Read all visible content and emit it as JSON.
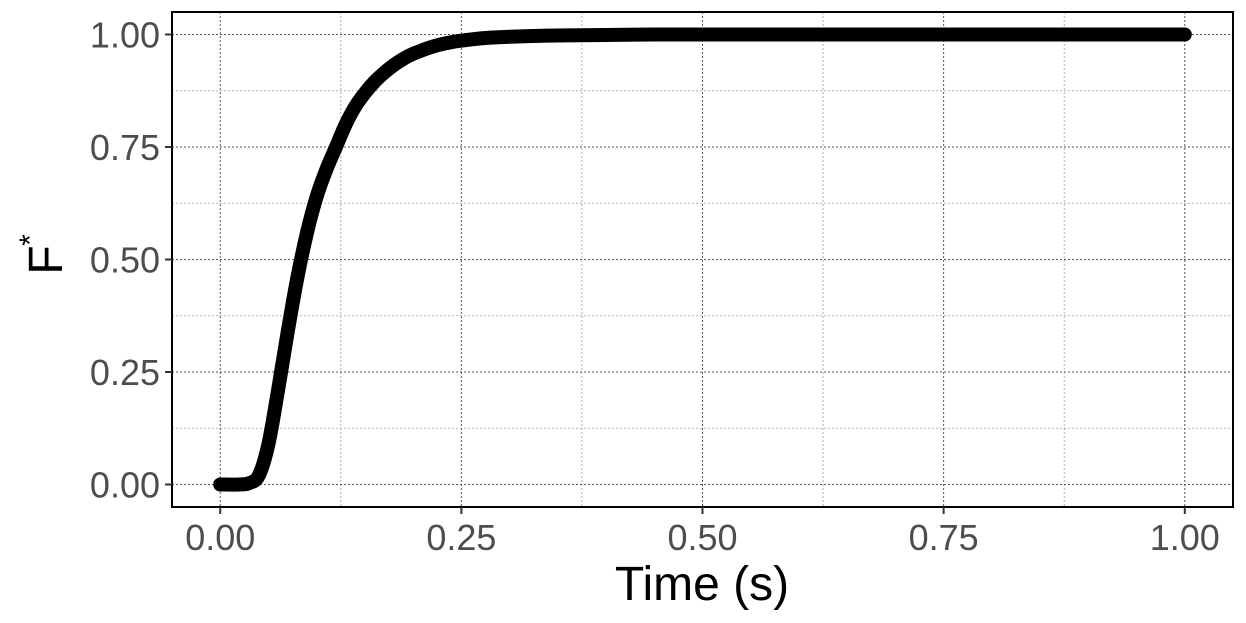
{
  "chart_data": {
    "type": "line",
    "title": "",
    "xlabel": "Time (s)",
    "ylabel": "F",
    "ylabel_superscript": "*",
    "xlim": [
      -0.05,
      1.05
    ],
    "ylim": [
      -0.05,
      1.05
    ],
    "x_ticks": [
      0.0,
      0.25,
      0.5,
      0.75,
      1.0
    ],
    "x_tick_labels": [
      "0.00",
      "0.25",
      "0.50",
      "0.75",
      "1.00"
    ],
    "y_ticks": [
      0.0,
      0.25,
      0.5,
      0.75,
      1.0
    ],
    "y_tick_labels": [
      "0.00",
      "0.25",
      "0.50",
      "0.75",
      "1.00"
    ],
    "grid": true,
    "line_color": "#000000",
    "series": [
      {
        "x": [
          0.0,
          0.02,
          0.03,
          0.04,
          0.05,
          0.06,
          0.07,
          0.08,
          0.09,
          0.1,
          0.11,
          0.12,
          0.13,
          0.14,
          0.15,
          0.16,
          0.17,
          0.18,
          0.19,
          0.2,
          0.22,
          0.24,
          0.26,
          0.28,
          0.3,
          0.33,
          0.36,
          0.4,
          0.45,
          0.5,
          0.6,
          0.7,
          0.8,
          0.9,
          1.0
        ],
        "y": [
          0.0,
          0.0,
          0.003,
          0.02,
          0.09,
          0.21,
          0.34,
          0.46,
          0.56,
          0.64,
          0.7,
          0.75,
          0.8,
          0.84,
          0.87,
          0.895,
          0.915,
          0.932,
          0.946,
          0.957,
          0.973,
          0.983,
          0.989,
          0.993,
          0.995,
          0.997,
          0.998,
          0.999,
          1.0,
          1.0,
          1.0,
          1.0,
          1.0,
          1.0,
          1.0
        ]
      }
    ]
  }
}
